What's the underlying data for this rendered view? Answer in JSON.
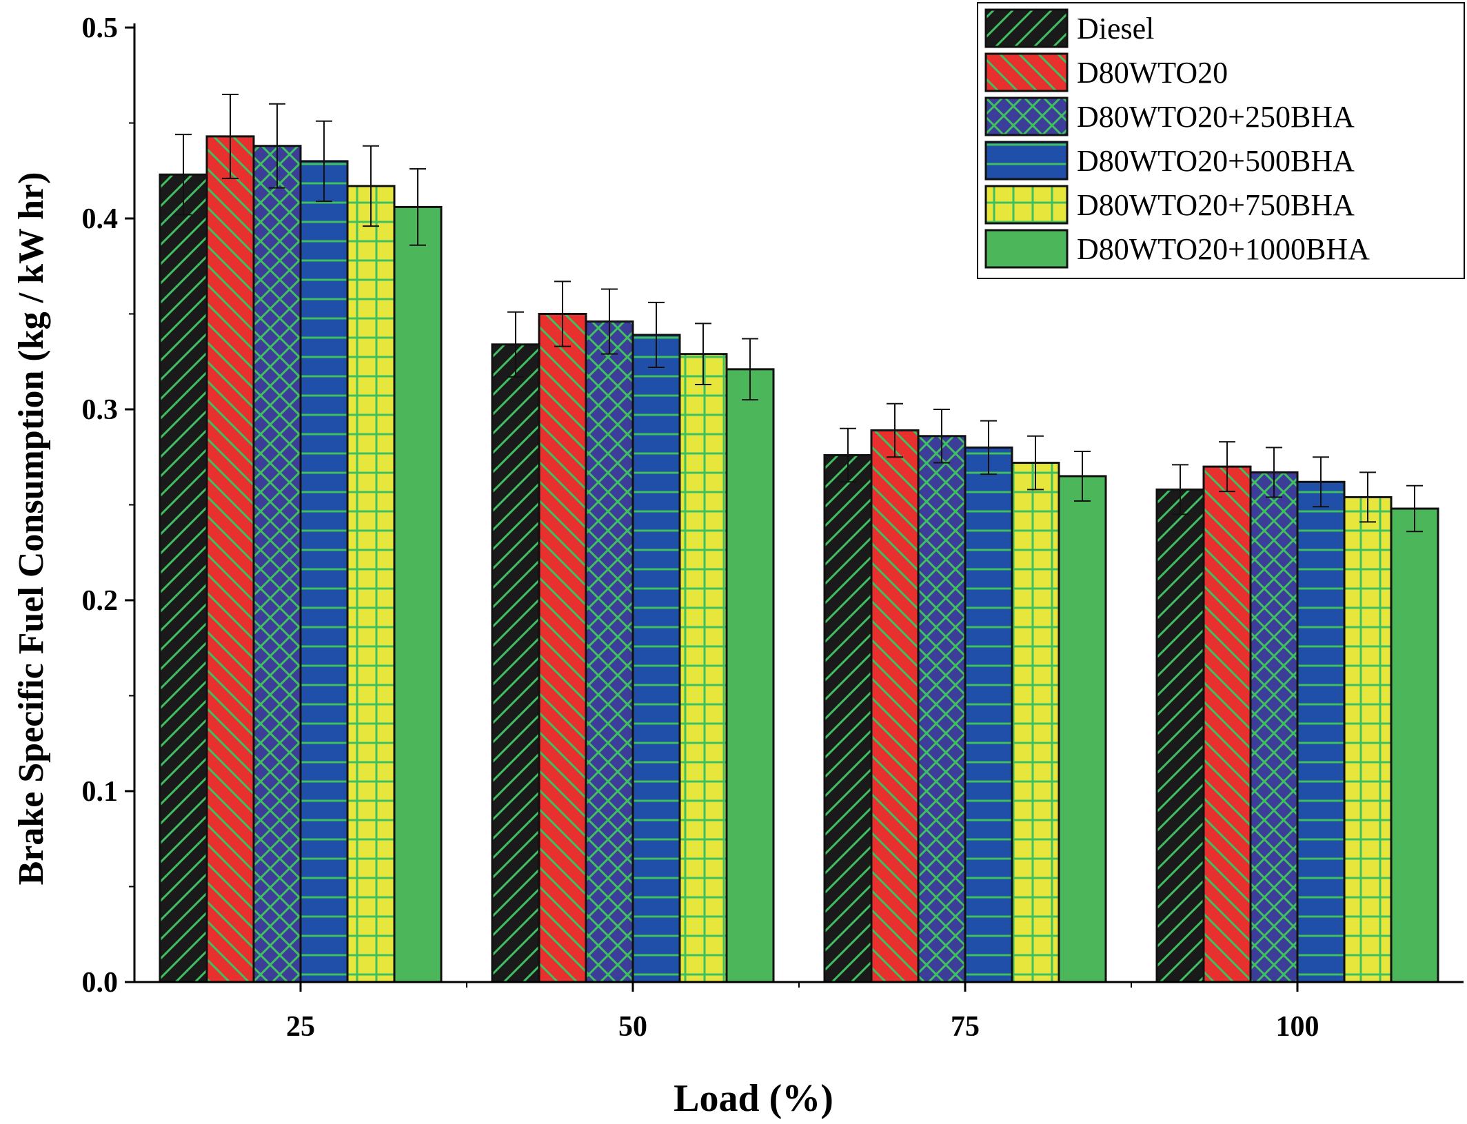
{
  "chart_data": {
    "type": "bar",
    "xlabel": "Load (%)",
    "ylabel": "Brake Specific Fuel Consumption (kg / kW hr)",
    "categories": [
      "25",
      "50",
      "75",
      "100"
    ],
    "ylim": [
      0,
      0.5
    ],
    "yticks": [
      "0.0",
      "0.1",
      "0.2",
      "0.3",
      "0.4",
      "0.5"
    ],
    "error_bars": true,
    "legend_position": "top-right",
    "series": [
      {
        "name": "Diesel",
        "values": [
          0.423,
          0.334,
          0.276,
          0.258
        ],
        "errors": [
          0.021,
          0.017,
          0.014,
          0.013
        ],
        "color": "#1a1a1a",
        "pattern": "diagonal-up"
      },
      {
        "name": "D80WTO20",
        "values": [
          0.443,
          0.35,
          0.289,
          0.27
        ],
        "errors": [
          0.022,
          0.017,
          0.014,
          0.013
        ],
        "color": "#e8302e",
        "pattern": "diagonal-down"
      },
      {
        "name": "D80WTO20+250BHA",
        "values": [
          0.438,
          0.346,
          0.286,
          0.267
        ],
        "errors": [
          0.022,
          0.017,
          0.014,
          0.013
        ],
        "color": "#3c3d99",
        "pattern": "cross-hatch"
      },
      {
        "name": "D80WTO20+500BHA",
        "values": [
          0.43,
          0.339,
          0.28,
          0.262
        ],
        "errors": [
          0.021,
          0.017,
          0.014,
          0.013
        ],
        "color": "#1f4fa8",
        "pattern": "horizontal"
      },
      {
        "name": "D80WTO20+750BHA",
        "values": [
          0.417,
          0.329,
          0.272,
          0.254
        ],
        "errors": [
          0.021,
          0.016,
          0.014,
          0.013
        ],
        "color": "#e6e63c",
        "pattern": "grid"
      },
      {
        "name": "D80WTO20+1000BHA",
        "values": [
          0.406,
          0.321,
          0.265,
          0.248
        ],
        "errors": [
          0.02,
          0.016,
          0.013,
          0.012
        ],
        "color": "#4cb65a",
        "pattern": "solid"
      }
    ],
    "pattern_line_color": "#3fbf60"
  }
}
